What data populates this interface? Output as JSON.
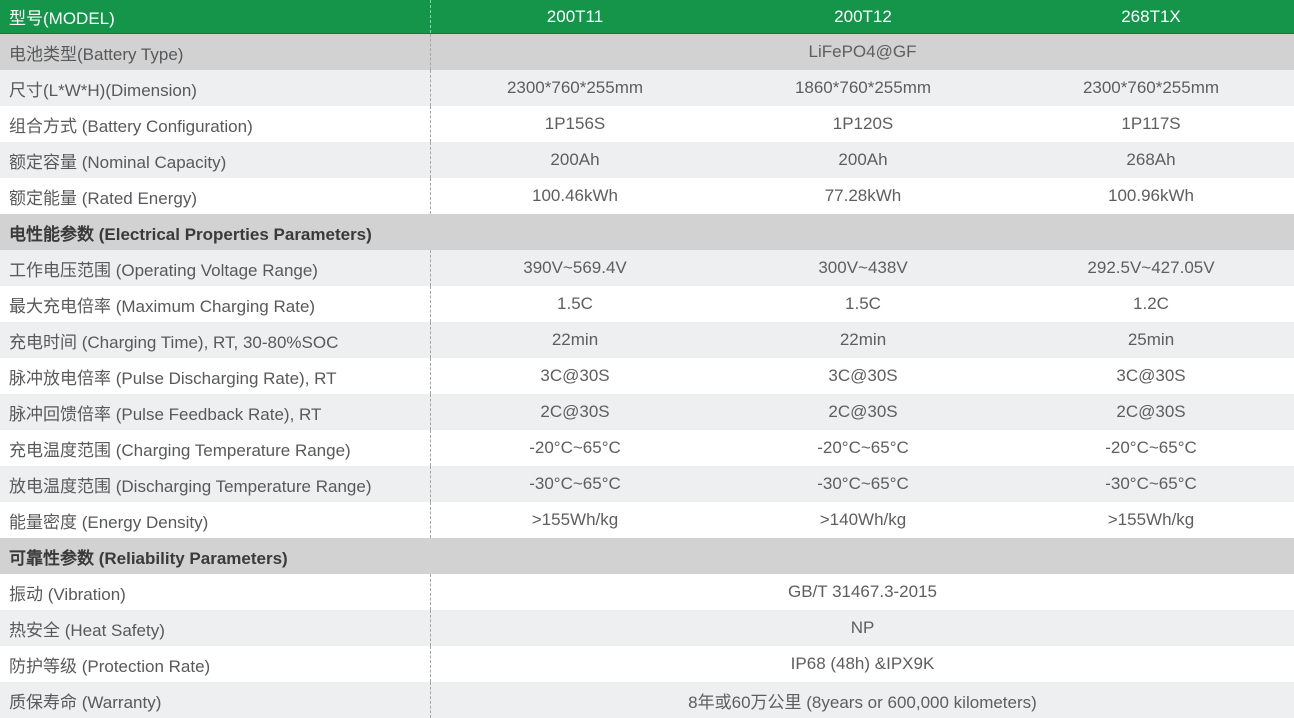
{
  "colors": {
    "header_green": "#14954a",
    "section_gray": "#d2d2d2",
    "stripe_gray": "#edeff0",
    "row_white": "#ffffff",
    "header_text": "#ffffff",
    "label_text": "#58595b",
    "value_text": "#5e5e5e"
  },
  "header": {
    "model_label": "型号(MODEL)",
    "models": [
      "200T11",
      "200T12",
      "268T1X"
    ]
  },
  "rows": [
    {
      "label": "电池类型(Battery Type)",
      "span": "LiFePO4@GF"
    },
    {
      "label": "尺寸(L*W*H)(Dimension)",
      "values": [
        "2300*760*255mm",
        "1860*760*255mm",
        "2300*760*255mm"
      ]
    },
    {
      "label": "组合方式 (Battery Configuration)",
      "values": [
        "1P156S",
        "1P120S",
        "1P117S"
      ]
    },
    {
      "label": "额定容量 (Nominal Capacity)",
      "values": [
        "200Ah",
        "200Ah",
        "268Ah"
      ]
    },
    {
      "label": "额定能量 (Rated Energy)",
      "values": [
        "100.46kWh",
        "77.28kWh",
        "100.96kWh"
      ]
    },
    {
      "section": "电性能参数 (Electrical Properties Parameters)"
    },
    {
      "label": "工作电压范围 (Operating Voltage Range)",
      "values": [
        "390V~569.4V",
        "300V~438V",
        "292.5V~427.05V"
      ]
    },
    {
      "label": "最大充电倍率 (Maximum Charging Rate)",
      "values": [
        "1.5C",
        "1.5C",
        "1.2C"
      ]
    },
    {
      "label": "充电时间 (Charging Time), RT, 30-80%SOC",
      "values": [
        "22min",
        "22min",
        "25min"
      ]
    },
    {
      "label": "脉冲放电倍率 (Pulse Discharging Rate), RT",
      "values": [
        "3C@30S",
        "3C@30S",
        "3C@30S"
      ]
    },
    {
      "label": "脉冲回馈倍率 (Pulse Feedback Rate), RT",
      "values": [
        "2C@30S",
        "2C@30S",
        "2C@30S"
      ]
    },
    {
      "label": "充电温度范围 (Charging Temperature Range)",
      "values": [
        "-20°C~65°C",
        "-20°C~65°C",
        "-20°C~65°C"
      ]
    },
    {
      "label": "放电温度范围 (Discharging Temperature Range)",
      "values": [
        "-30°C~65°C",
        "-30°C~65°C",
        "-30°C~65°C"
      ]
    },
    {
      "label": "能量密度 (Energy Density)",
      "values": [
        ">155Wh/kg",
        ">140Wh/kg",
        ">155Wh/kg"
      ]
    },
    {
      "section": "可靠性参数 (Reliability Parameters)"
    },
    {
      "label": "振动 (Vibration)",
      "span": "GB/T 31467.3-2015"
    },
    {
      "label": "热安全 (Heat Safety)",
      "span": "NP"
    },
    {
      "label": "防护等级 (Protection Rate)",
      "span": "IP68 (48h) &IPX9K"
    },
    {
      "label": "质保寿命 (Warranty)",
      "span": "8年或60万公里 (8years or 600,000 kilometers)"
    }
  ]
}
